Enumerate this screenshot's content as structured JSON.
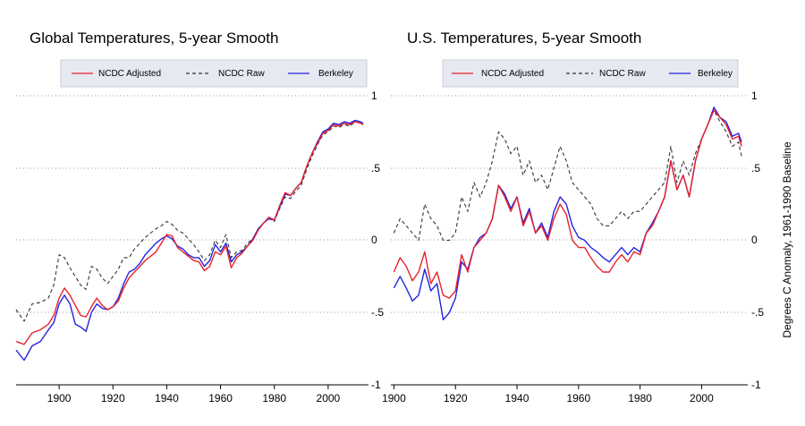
{
  "charts": [
    {
      "id": "global",
      "chart_data": {
        "type": "line",
        "title": "Global Temperatures, 5-year Smooth",
        "xlabel": "",
        "ylabel": "",
        "xlim": [
          1884,
          2015
        ],
        "ylim": [
          -1,
          1
        ],
        "xticks": [
          1900,
          1920,
          1940,
          1960,
          1980,
          2000
        ],
        "xtick_labels": [
          "1900",
          "1920",
          "1940",
          "1960",
          "1980",
          "2000"
        ],
        "yticks": [
          1,
          0.5,
          0,
          -0.5,
          -1
        ],
        "ytick_labels": [
          "1",
          ".5",
          "0",
          "-.5",
          "-1"
        ],
        "legend": [
          "NCDC Adjusted",
          "NCDC Raw",
          "Berkeley"
        ],
        "legend_position": "top",
        "grid": "dotted horizontal",
        "series": [
          {
            "name": "NCDC Adjusted",
            "color": "#e8222b",
            "dash": "solid",
            "x": [
              1884,
              1887,
              1890,
              1893,
              1896,
              1898,
              1900,
              1902,
              1904,
              1906,
              1908,
              1910,
              1912,
              1914,
              1916,
              1918,
              1920,
              1922,
              1924,
              1926,
              1928,
              1930,
              1932,
              1934,
              1936,
              1938,
              1940,
              1942,
              1944,
              1946,
              1948,
              1950,
              1952,
              1954,
              1956,
              1958,
              1960,
              1962,
              1964,
              1966,
              1968,
              1970,
              1972,
              1974,
              1976,
              1978,
              1980,
              1982,
              1984,
              1986,
              1988,
              1990,
              1992,
              1994,
              1996,
              1998,
              2000,
              2002,
              2004,
              2006,
              2008,
              2010,
              2012,
              2013
            ],
            "values": [
              -0.7,
              -0.72,
              -0.64,
              -0.62,
              -0.58,
              -0.52,
              -0.4,
              -0.33,
              -0.38,
              -0.45,
              -0.52,
              -0.53,
              -0.46,
              -0.4,
              -0.45,
              -0.48,
              -0.46,
              -0.42,
              -0.33,
              -0.26,
              -0.22,
              -0.18,
              -0.14,
              -0.11,
              -0.08,
              -0.02,
              0.04,
              0.03,
              -0.05,
              -0.08,
              -0.11,
              -0.14,
              -0.15,
              -0.21,
              -0.18,
              -0.08,
              -0.1,
              -0.04,
              -0.19,
              -0.12,
              -0.09,
              -0.04,
              0.0,
              0.07,
              0.12,
              0.16,
              0.14,
              0.24,
              0.33,
              0.31,
              0.36,
              0.4,
              0.51,
              0.6,
              0.67,
              0.74,
              0.76,
              0.8,
              0.79,
              0.81,
              0.8,
              0.82,
              0.81,
              0.8
            ]
          },
          {
            "name": "NCDC Raw",
            "color": "#333333",
            "dash": "dashed",
            "x": [
              1884,
              1887,
              1890,
              1893,
              1896,
              1898,
              1900,
              1902,
              1904,
              1906,
              1908,
              1910,
              1912,
              1914,
              1916,
              1918,
              1920,
              1922,
              1924,
              1926,
              1928,
              1930,
              1932,
              1934,
              1936,
              1938,
              1940,
              1942,
              1944,
              1946,
              1948,
              1950,
              1952,
              1954,
              1956,
              1958,
              1960,
              1962,
              1964,
              1966,
              1968,
              1970,
              1972,
              1974,
              1976,
              1978,
              1980,
              1982,
              1984,
              1986,
              1988,
              1990,
              1992,
              1994,
              1996,
              1998,
              2000,
              2002,
              2004,
              2006,
              2008,
              2010,
              2012,
              2013
            ],
            "values": [
              -0.48,
              -0.56,
              -0.44,
              -0.43,
              -0.4,
              -0.31,
              -0.1,
              -0.12,
              -0.19,
              -0.25,
              -0.31,
              -0.34,
              -0.18,
              -0.2,
              -0.26,
              -0.3,
              -0.25,
              -0.2,
              -0.12,
              -0.12,
              -0.06,
              -0.02,
              0.02,
              0.05,
              0.08,
              0.1,
              0.13,
              0.11,
              0.07,
              0.05,
              0.01,
              -0.03,
              -0.08,
              -0.14,
              -0.1,
              0.0,
              -0.05,
              0.04,
              -0.12,
              -0.08,
              -0.07,
              -0.02,
              0.01,
              0.07,
              0.12,
              0.15,
              0.13,
              0.22,
              0.3,
              0.29,
              0.34,
              0.38,
              0.49,
              0.58,
              0.66,
              0.73,
              0.75,
              0.79,
              0.78,
              0.8,
              0.79,
              0.82,
              0.81,
              0.8
            ]
          },
          {
            "name": "Berkeley",
            "color": "#2323e0",
            "dash": "solid",
            "x": [
              1884,
              1887,
              1890,
              1893,
              1896,
              1898,
              1900,
              1902,
              1904,
              1906,
              1908,
              1910,
              1912,
              1914,
              1916,
              1918,
              1920,
              1922,
              1924,
              1926,
              1928,
              1930,
              1932,
              1934,
              1936,
              1938,
              1940,
              1942,
              1944,
              1946,
              1948,
              1950,
              1952,
              1954,
              1956,
              1958,
              1960,
              1962,
              1964,
              1966,
              1968,
              1970,
              1972,
              1974,
              1976,
              1978,
              1980,
              1982,
              1984,
              1986,
              1988,
              1990,
              1992,
              1994,
              1996,
              1998,
              2000,
              2002,
              2004,
              2006,
              2008,
              2010,
              2012,
              2013
            ],
            "values": [
              -0.76,
              -0.83,
              -0.73,
              -0.7,
              -0.62,
              -0.57,
              -0.44,
              -0.38,
              -0.44,
              -0.58,
              -0.6,
              -0.63,
              -0.5,
              -0.44,
              -0.47,
              -0.48,
              -0.46,
              -0.4,
              -0.3,
              -0.22,
              -0.2,
              -0.16,
              -0.1,
              -0.06,
              -0.02,
              0.01,
              0.03,
              0.01,
              -0.04,
              -0.06,
              -0.1,
              -0.12,
              -0.12,
              -0.18,
              -0.14,
              -0.03,
              -0.08,
              -0.02,
              -0.15,
              -0.1,
              -0.08,
              -0.04,
              0.01,
              0.08,
              0.12,
              0.15,
              0.14,
              0.23,
              0.32,
              0.31,
              0.36,
              0.4,
              0.51,
              0.6,
              0.68,
              0.75,
              0.77,
              0.81,
              0.8,
              0.82,
              0.81,
              0.83,
              0.82,
              0.81
            ]
          }
        ]
      }
    },
    {
      "id": "us",
      "chart_data": {
        "type": "line",
        "title": "U.S. Temperatures, 5-year Smooth",
        "xlabel": "",
        "ylabel": "Degrees C Anomaly, 1961-1990 Baseline",
        "xlim": [
          1899,
          2015
        ],
        "ylim": [
          -1,
          1
        ],
        "xticks": [
          1900,
          1920,
          1940,
          1960,
          1980,
          2000
        ],
        "xtick_labels": [
          "1900",
          "1920",
          "1940",
          "1960",
          "1980",
          "2000"
        ],
        "yticks": [
          1,
          0.5,
          0,
          -0.5,
          -1
        ],
        "ytick_labels": [
          "1",
          ".5",
          "0",
          "-.5",
          "-1"
        ],
        "legend": [
          "NCDC Adjusted",
          "NCDC Raw",
          "Berkeley"
        ],
        "legend_position": "top",
        "grid": "dotted horizontal",
        "series": [
          {
            "name": "NCDC Adjusted",
            "color": "#e8222b",
            "dash": "solid",
            "x": [
              1900,
              1902,
              1904,
              1906,
              1908,
              1910,
              1912,
              1914,
              1916,
              1918,
              1920,
              1922,
              1924,
              1926,
              1928,
              1930,
              1932,
              1934,
              1936,
              1938,
              1940,
              1942,
              1944,
              1946,
              1948,
              1950,
              1952,
              1954,
              1956,
              1958,
              1960,
              1962,
              1964,
              1966,
              1968,
              1970,
              1972,
              1974,
              1976,
              1978,
              1980,
              1982,
              1984,
              1986,
              1988,
              1990,
              1992,
              1994,
              1996,
              1998,
              2000,
              2002,
              2004,
              2006,
              2008,
              2010,
              2012,
              2013
            ],
            "values": [
              -0.22,
              -0.12,
              -0.18,
              -0.28,
              -0.22,
              -0.08,
              -0.3,
              -0.22,
              -0.38,
              -0.4,
              -0.35,
              -0.1,
              -0.22,
              -0.05,
              0.0,
              0.05,
              0.15,
              0.38,
              0.3,
              0.2,
              0.3,
              0.1,
              0.2,
              0.05,
              0.1,
              0.0,
              0.15,
              0.25,
              0.18,
              0.0,
              -0.05,
              -0.05,
              -0.12,
              -0.18,
              -0.22,
              -0.22,
              -0.15,
              -0.1,
              -0.15,
              -0.08,
              -0.1,
              0.05,
              0.1,
              0.2,
              0.3,
              0.55,
              0.35,
              0.45,
              0.3,
              0.55,
              0.7,
              0.8,
              0.9,
              0.85,
              0.8,
              0.7,
              0.72,
              0.65
            ]
          },
          {
            "name": "NCDC Raw",
            "color": "#333333",
            "dash": "dashed",
            "x": [
              1900,
              1902,
              1904,
              1906,
              1908,
              1910,
              1912,
              1914,
              1916,
              1918,
              1920,
              1922,
              1924,
              1926,
              1928,
              1930,
              1932,
              1934,
              1936,
              1938,
              1940,
              1942,
              1944,
              1946,
              1948,
              1950,
              1952,
              1954,
              1956,
              1958,
              1960,
              1962,
              1964,
              1966,
              1968,
              1970,
              1972,
              1974,
              1976,
              1978,
              1980,
              1982,
              1984,
              1986,
              1988,
              1990,
              1992,
              1994,
              1996,
              1998,
              2000,
              2002,
              2004,
              2006,
              2008,
              2010,
              2012,
              2013
            ],
            "values": [
              0.05,
              0.15,
              0.1,
              0.05,
              0.0,
              0.25,
              0.15,
              0.1,
              0.0,
              0.0,
              0.05,
              0.3,
              0.2,
              0.4,
              0.3,
              0.4,
              0.55,
              0.75,
              0.7,
              0.6,
              0.65,
              0.45,
              0.55,
              0.4,
              0.45,
              0.35,
              0.5,
              0.65,
              0.55,
              0.4,
              0.35,
              0.3,
              0.25,
              0.15,
              0.1,
              0.1,
              0.15,
              0.2,
              0.15,
              0.2,
              0.2,
              0.25,
              0.3,
              0.35,
              0.4,
              0.65,
              0.4,
              0.55,
              0.45,
              0.6,
              0.7,
              0.8,
              0.9,
              0.82,
              0.75,
              0.65,
              0.68,
              0.58
            ]
          },
          {
            "name": "Berkeley",
            "color": "#2323e0",
            "dash": "solid",
            "x": [
              1900,
              1902,
              1904,
              1906,
              1908,
              1910,
              1912,
              1914,
              1916,
              1918,
              1920,
              1922,
              1924,
              1926,
              1928,
              1930,
              1932,
              1934,
              1936,
              1938,
              1940,
              1942,
              1944,
              1946,
              1948,
              1950,
              1952,
              1954,
              1956,
              1958,
              1960,
              1962,
              1964,
              1966,
              1968,
              1970,
              1972,
              1974,
              1976,
              1978,
              1980,
              1982,
              1984,
              1986,
              1988,
              1990,
              1992,
              1994,
              1996,
              1998,
              2000,
              2002,
              2004,
              2006,
              2008,
              2010,
              2012,
              2013
            ],
            "values": [
              -0.33,
              -0.25,
              -0.33,
              -0.42,
              -0.38,
              -0.2,
              -0.35,
              -0.3,
              -0.55,
              -0.5,
              -0.4,
              -0.15,
              -0.2,
              -0.05,
              0.02,
              0.05,
              0.15,
              0.38,
              0.32,
              0.22,
              0.3,
              0.12,
              0.22,
              0.05,
              0.12,
              0.02,
              0.2,
              0.3,
              0.25,
              0.1,
              0.02,
              0.0,
              -0.05,
              -0.08,
              -0.12,
              -0.15,
              -0.1,
              -0.05,
              -0.1,
              -0.05,
              -0.08,
              0.05,
              0.12,
              0.2,
              0.3,
              0.55,
              0.35,
              0.45,
              0.3,
              0.55,
              0.7,
              0.8,
              0.92,
              0.85,
              0.82,
              0.72,
              0.74,
              0.68
            ]
          }
        ]
      }
    }
  ]
}
